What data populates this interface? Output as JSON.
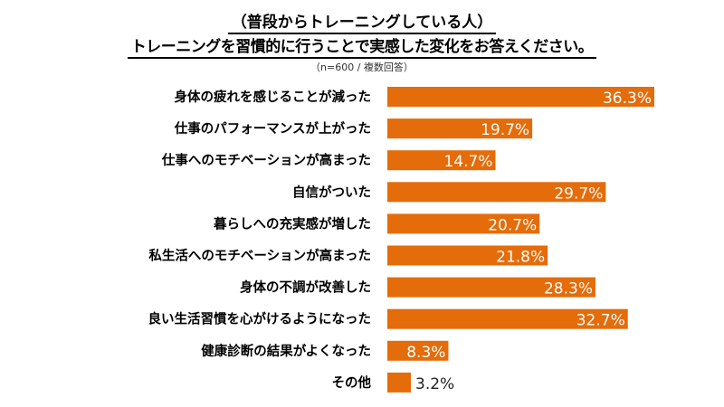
{
  "chart_data": {
    "type": "bar",
    "orientation": "horizontal",
    "title": "（普段からトレーニングしている人）",
    "subtitle": "トレーニングを習慣的に行うことで実感した変化をお答えください。",
    "note": "（n=600 / 複数回答）",
    "categories": [
      "身体の疲れを感じることが減った",
      "仕事のパフォーマンスが上がった",
      "仕事へのモチベーションが高まった",
      "自信がついた",
      "暮らしへの充実感が増した",
      "私生活へのモチベーションが高まった",
      "身体の不調が改善した",
      "良い生活習慣を心がけるようになった",
      "健康診断の結果がよくなった",
      "その他"
    ],
    "values": [
      36.3,
      19.7,
      14.7,
      29.7,
      20.7,
      21.8,
      28.3,
      32.7,
      8.3,
      3.2
    ],
    "labels": [
      "36.3%",
      "19.7%",
      "14.7%",
      "29.7%",
      "20.7%",
      "21.8%",
      "28.3%",
      "32.7%",
      "8.3%",
      "3.2%"
    ],
    "unit": "%",
    "xlim": [
      0,
      36.3
    ],
    "bar_color": "#E46C0A",
    "grid": false,
    "legend": "none"
  }
}
